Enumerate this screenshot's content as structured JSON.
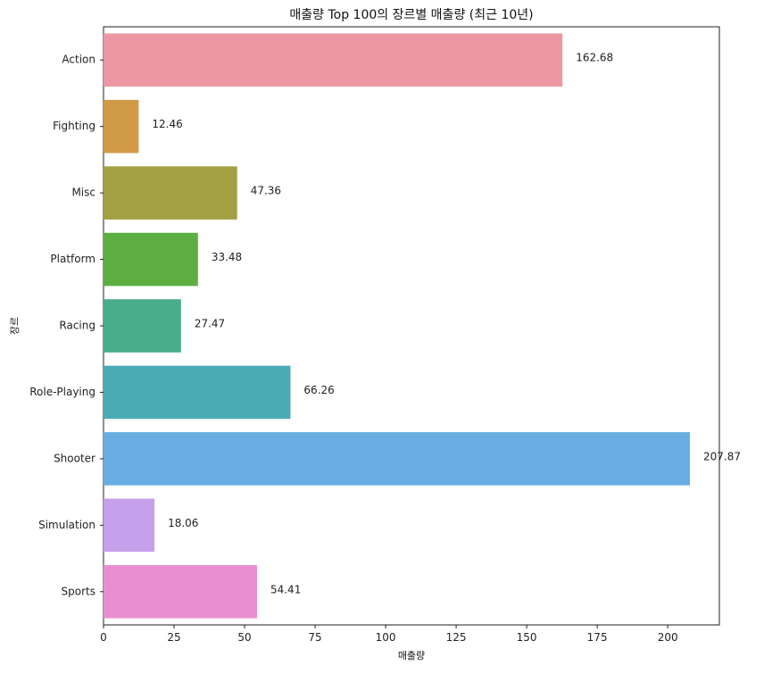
{
  "chart_data": {
    "type": "bar",
    "orientation": "horizontal",
    "title": "매출량 Top 100의 장르별 매출량 (최근 10년)",
    "xlabel": "매출량",
    "ylabel": "장르",
    "categories": [
      "Action",
      "Fighting",
      "Misc",
      "Platform",
      "Racing",
      "Role-Playing",
      "Shooter",
      "Simulation",
      "Sports"
    ],
    "values": [
      162.68,
      12.46,
      47.36,
      33.48,
      27.47,
      66.26,
      207.87,
      18.06,
      54.41
    ],
    "data_labels": [
      "162.68",
      "12.46",
      "47.36",
      "33.48",
      "27.47",
      "66.26",
      "207.87",
      "18.06",
      "54.41"
    ],
    "colors": [
      "#ec97a3",
      "#d19a47",
      "#a3a043",
      "#5daf42",
      "#48ad8a",
      "#4aabb5",
      "#68aee2",
      "#c7a0ec",
      "#e98fd0"
    ],
    "xlim": [
      0,
      218.3
    ],
    "xticks": [
      0,
      25,
      50,
      75,
      100,
      125,
      150,
      175,
      200
    ],
    "grid": false,
    "legend": "none"
  }
}
